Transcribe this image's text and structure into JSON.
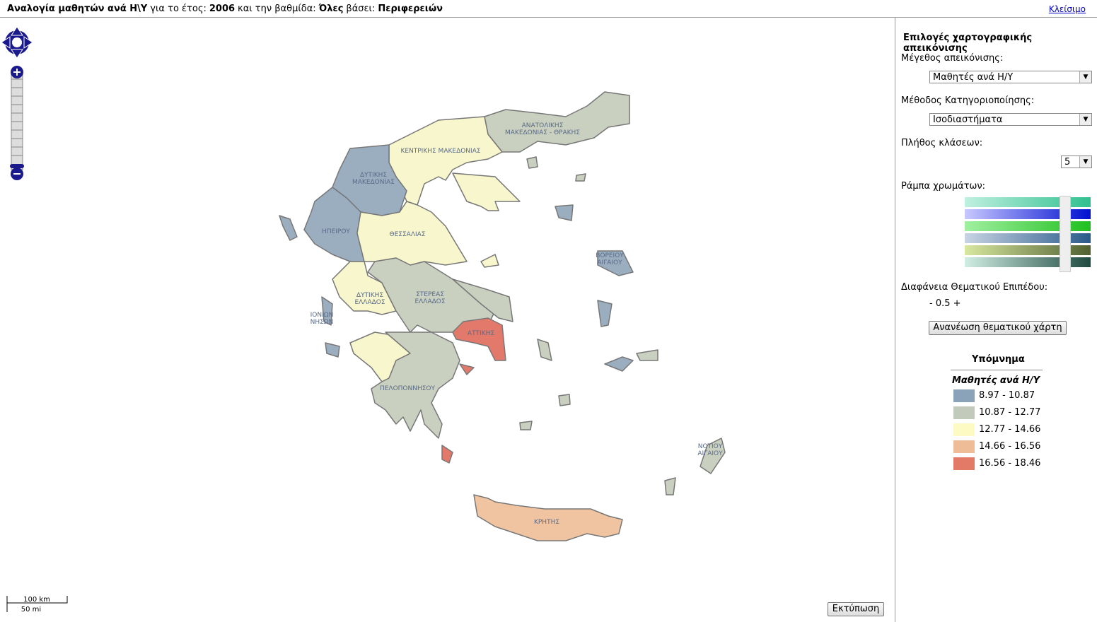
{
  "header": {
    "title": "Αναλογία μαθητών ανά Η\\Υ",
    "year_label": "για το έτος:",
    "year": 2006,
    "level_label": "και την βαθμίδα:",
    "level": "Όλες",
    "basis_label": "βάσει:",
    "basis": "Περιφερειών",
    "close": "Κλείσιμο"
  },
  "map": {
    "regions": [
      {
        "label": [
          "ΑΝΑΤΟΛΙΚΗΣ",
          "ΜΑΚΕΔΟΝΙΑΣ - ΘΡΑΚΗΣ"
        ],
        "color": "#c9d0c0"
      },
      {
        "label": [
          "ΚΕΝΤΡΙΚΗΣ ΜΑΚΕΔΟΝΙΑΣ"
        ],
        "color": "#f8f6cc"
      },
      {
        "label": [
          "ΔΥΤΙΚΗΣ",
          "ΜΑΚΕΔΟΝΙΑΣ"
        ],
        "color": "#9aaec0"
      },
      {
        "label": [
          "ΗΠΕΙΡΟΥ"
        ],
        "color": "#9aaec0"
      },
      {
        "label": [
          "ΘΕΣΣΑΛΙΑΣ"
        ],
        "color": "#f8f6cc"
      },
      {
        "label": [
          "ΔΥΤΙΚΗΣ",
          "ΕΛΛΑΔΟΣ"
        ],
        "color": "#f8f6cc"
      },
      {
        "label": [
          "ΣΤΕΡΕΑΣ",
          "ΕΛΛΑΔΟΣ"
        ],
        "color": "#c9d0c0"
      },
      {
        "label": [
          "ΙΟΝΙΩΝ",
          "ΝΗΣΩΝ"
        ],
        "color": "#9aaec0"
      },
      {
        "label": [
          "ΑΤΤΙΚΗΣ"
        ],
        "color": "#e3796b"
      },
      {
        "label": [
          "ΠΕΛΟΠΟΝΝΗΣΟΥ"
        ],
        "color": "#c9d0c0"
      },
      {
        "label": [
          "ΒΟΡΕΙΟΥ",
          "ΑΙΓΑΙΟΥ"
        ],
        "color": "#9aaec0"
      },
      {
        "label": [
          "ΝΟΤΙΟΥ",
          "ΑΙΓΑΙΟΥ"
        ],
        "color": "#c9d0c0"
      },
      {
        "label": [
          "ΚΡΗΤΗΣ"
        ],
        "color": "#f0c4a0"
      }
    ],
    "scale_km": "100 km",
    "scale_mi": "50 mi",
    "print": "Εκτύπωση"
  },
  "panel": {
    "title": "Επιλογές χαρτογραφικής απεικόνισης",
    "measure_label": "Μέγεθος απεικόνισης:",
    "measure": "Μαθητές ανά Η/Υ",
    "method_label": "Μέθοδος Κατηγοριοποίησης:",
    "method": "Ισοδιαστήματα",
    "classes_label": "Πλήθος κλάσεων:",
    "classes": 5,
    "ramp_label": "Ράμπα χρωμάτων:",
    "opacity_label": "Διαφάνεια Θεματικού Επιπέδου:",
    "opacity_minus": "-",
    "opacity": 0.5,
    "opacity_plus": "+",
    "refresh": "Ανανέωση θεματικού χάρτη"
  },
  "legend": {
    "title": "Υπόμνημα",
    "subtitle": "Μαθητές ανά Η/Υ",
    "classes": [
      {
        "label": "8.97 - 10.87",
        "color": "#8aa3b8"
      },
      {
        "label": "10.87 - 12.77",
        "color": "#c2cbbb"
      },
      {
        "label": "12.77 - 14.66",
        "color": "#fdfbc3"
      },
      {
        "label": "14.66 - 16.56",
        "color": "#efbc98"
      },
      {
        "label": "16.56 - 18.46",
        "color": "#e27a67"
      }
    ]
  }
}
